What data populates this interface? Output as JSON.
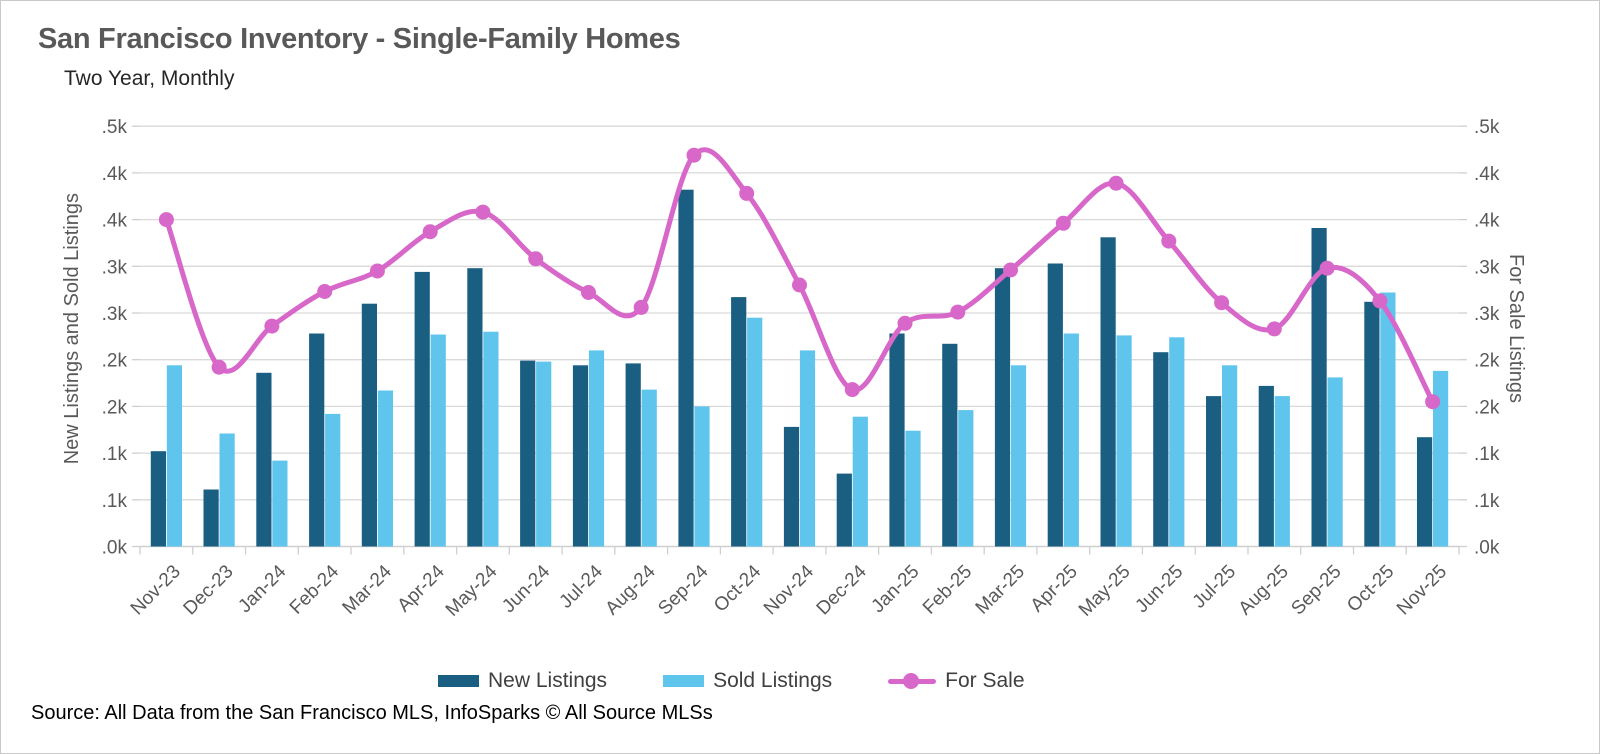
{
  "header": {
    "title": "San Francisco Inventory - Single-Family Homes",
    "subtitle": "Two Year, Monthly"
  },
  "source": {
    "text": "Source: All Data from the San Francisco MLS, InfoSparks © All Source MLSs"
  },
  "colors": {
    "new_listings": "#1a5e82",
    "sold_listings": "#5fc5ed",
    "for_sale": "#d767c9",
    "gridline": "#d9d9d9",
    "tick": "#cfcfcf",
    "axis_text": "#595959",
    "legend_text": "#404040"
  },
  "chart_data": {
    "type": "bar",
    "title": "San Francisco Inventory - Single-Family Homes",
    "subtitle": "Two Year, Monthly",
    "categories": [
      "Nov-23",
      "Dec-23",
      "Jan-24",
      "Feb-24",
      "Mar-24",
      "Apr-24",
      "May-24",
      "Jun-24",
      "Jul-24",
      "Aug-24",
      "Sep-24",
      "Oct-24",
      "Nov-24",
      "Dec-24",
      "Jan-25",
      "Feb-25",
      "Mar-25",
      "Apr-25",
      "May-25",
      "Jun-25",
      "Jul-25",
      "Aug-25",
      "Sep-25",
      "Oct-25",
      "Nov-25"
    ],
    "series": [
      {
        "name": "New Listings",
        "type": "bar",
        "axis": "left",
        "color": "#1a5e82",
        "values": [
          102,
          61,
          186,
          228,
          260,
          294,
          298,
          199,
          194,
          196,
          382,
          267,
          128,
          78,
          228,
          217,
          298,
          303,
          331,
          208,
          161,
          172,
          341,
          262,
          117
        ]
      },
      {
        "name": "Sold Listings",
        "type": "bar",
        "axis": "left",
        "color": "#5fc5ed",
        "values": [
          194,
          121,
          92,
          142,
          167,
          227,
          230,
          198,
          210,
          168,
          150,
          245,
          210,
          139,
          124,
          146,
          194,
          228,
          226,
          224,
          194,
          161,
          181,
          272,
          188
        ]
      },
      {
        "name": "For Sale",
        "type": "line",
        "axis": "right",
        "color": "#d767c9",
        "values": [
          350,
          192,
          236,
          273,
          295,
          337,
          358,
          308,
          272,
          256,
          419,
          378,
          280,
          168,
          239,
          251,
          296,
          346,
          389,
          327,
          261,
          233,
          298,
          263,
          155
        ]
      }
    ],
    "xlabel": "",
    "ylabel_left": "New Listings and Sold Listings",
    "ylabel_right": "For Sale Listings",
    "ylim": [
      0,
      465
    ],
    "y_ticks": [
      {
        "value": 0,
        "label": ".0k"
      },
      {
        "value": 50,
        "label": ".1k"
      },
      {
        "value": 100,
        "label": ".1k"
      },
      {
        "value": 150,
        "label": ".2k"
      },
      {
        "value": 200,
        "label": ".2k"
      },
      {
        "value": 250,
        "label": ".3k"
      },
      {
        "value": 300,
        "label": ".3k"
      },
      {
        "value": 350,
        "label": ".4k"
      },
      {
        "value": 400,
        "label": ".4k"
      },
      {
        "value": 450,
        "label": ".5k"
      }
    ],
    "grid": true,
    "legend_position": "bottom"
  }
}
